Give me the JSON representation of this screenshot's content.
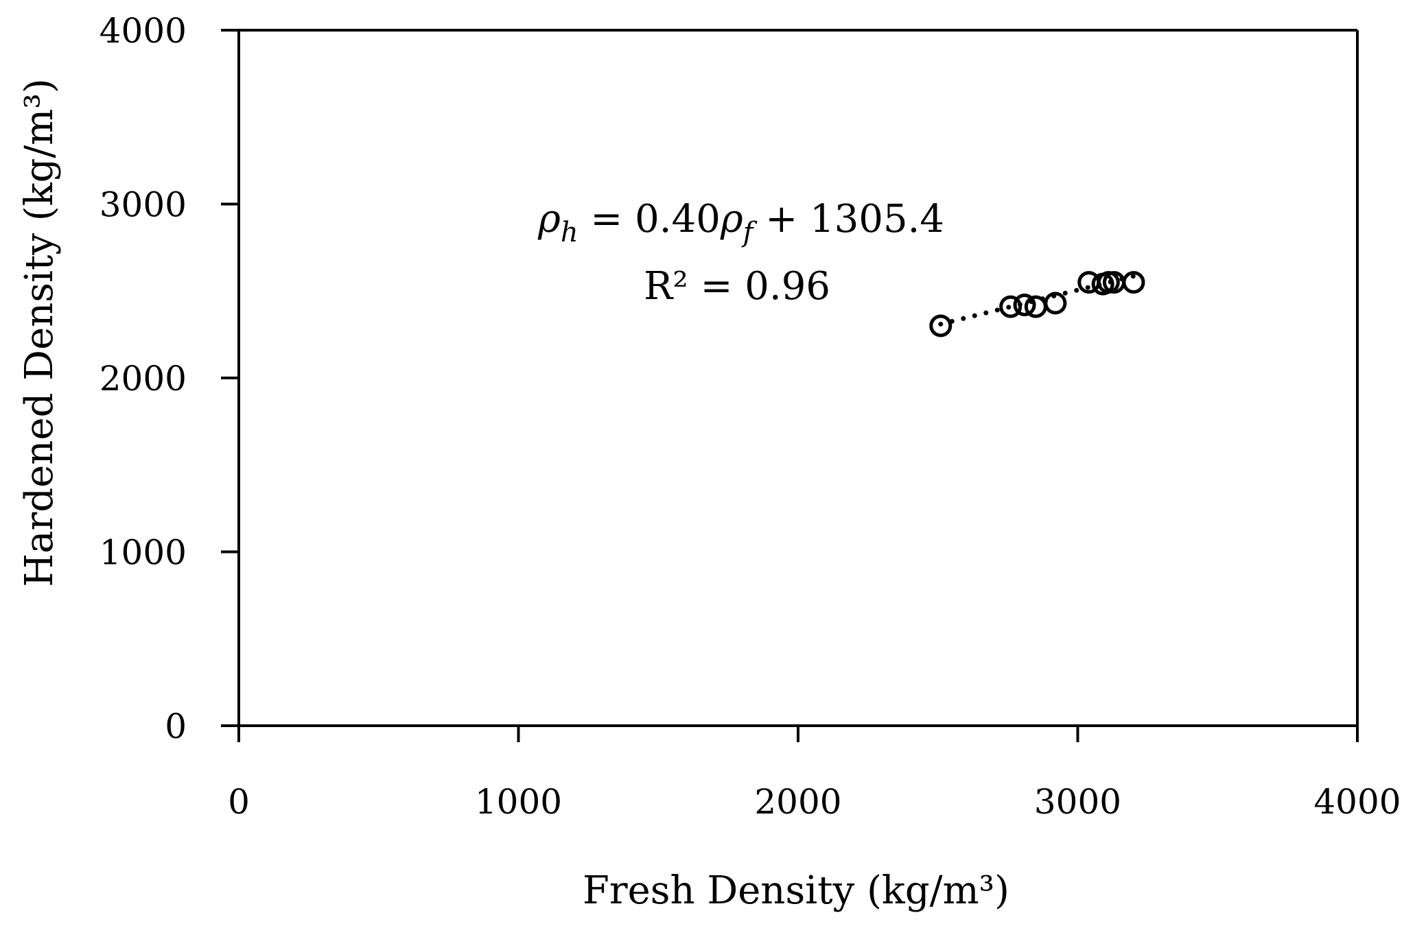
{
  "chart_data": {
    "type": "scatter",
    "xlabel": "Fresh Density (kg/m³)",
    "ylabel": "Hardened Density (kg/m³)",
    "xlim": [
      0,
      4000
    ],
    "ylim": [
      0,
      4000
    ],
    "xticks": [
      "0",
      "1000",
      "2000",
      "3000",
      "4000"
    ],
    "yticks": [
      "0",
      "1000",
      "2000",
      "3000",
      "4000"
    ],
    "grid": false,
    "legend": "none",
    "series": [
      {
        "marker": "open-circle",
        "x": [
          2510,
          2760,
          2810,
          2850,
          2920,
          3040,
          3090,
          3110,
          3130,
          3200
        ],
        "y": [
          2300,
          2410,
          2420,
          2410,
          2430,
          2550,
          2540,
          2550,
          2550,
          2550
        ]
      }
    ],
    "trendline": {
      "style": "dotted",
      "slope": 0.4,
      "intercept": 1305.4,
      "x_range": [
        2510,
        3200
      ]
    },
    "annotations": {
      "equation": {
        "rho": "ρ",
        "h": "h",
        "mid": " = 0.40",
        "f": "f",
        "tail": " + 1305.4"
      },
      "r2": "R² = 0.96"
    },
    "colors": {
      "axis": "#000000",
      "marker": "#000000"
    }
  }
}
